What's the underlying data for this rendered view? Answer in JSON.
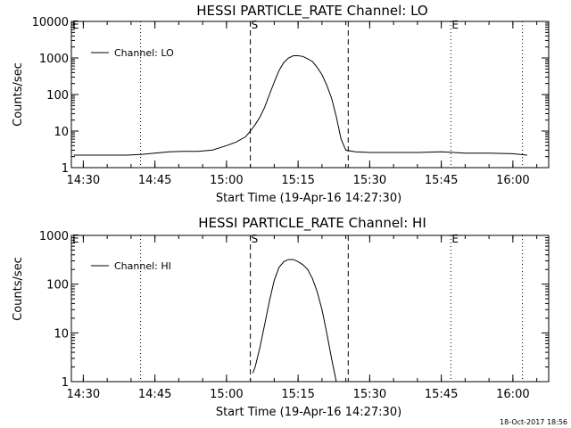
{
  "chart_data": [
    {
      "type": "line",
      "title": "HESSI PARTICLE_RATE Channel: LO",
      "xlabel": "Start Time (19-Apr-16 14:27:30)",
      "ylabel": "Counts/sec",
      "yscale": "log",
      "ylim": [
        1,
        10000
      ],
      "yticks": [
        1,
        10,
        100,
        1000,
        10000
      ],
      "ytick_labels": [
        "1",
        "10",
        "100",
        "1000",
        "10000"
      ],
      "xlim": [
        "14:27:30",
        "16:07:30"
      ],
      "xtick_labels": [
        "14:30",
        "14:45",
        "15:00",
        "15:15",
        "15:30",
        "15:45",
        "16:00"
      ],
      "legend": "top-left",
      "series": [
        {
          "name": "Channel: LO",
          "x": [
            "14:28:00",
            "14:30:00",
            "14:33:00",
            "14:36:00",
            "14:39:00",
            "14:42:00",
            "14:45:00",
            "14:48:00",
            "14:51:00",
            "14:54:00",
            "14:57:00",
            "15:00:00",
            "15:02:00",
            "15:04:00",
            "15:05:00",
            "15:06:00",
            "15:07:00",
            "15:08:00",
            "15:09:00",
            "15:10:00",
            "15:11:00",
            "15:12:00",
            "15:13:00",
            "15:14:00",
            "15:15:00",
            "15:16:00",
            "15:17:00",
            "15:18:00",
            "15:19:00",
            "15:20:00",
            "15:21:00",
            "15:22:00",
            "15:23:00",
            "15:24:00",
            "15:25:00",
            "15:27:00",
            "15:30:00",
            "15:35:00",
            "15:40:00",
            "15:45:00",
            "15:50:00",
            "15:55:00",
            "16:00:00",
            "16:03:00"
          ],
          "values": [
            2.2,
            2.2,
            2.2,
            2.2,
            2.2,
            2.3,
            2.5,
            2.7,
            2.8,
            2.8,
            3,
            4,
            5,
            7,
            10,
            15,
            24,
            45,
            100,
            220,
            450,
            750,
            1000,
            1150,
            1150,
            1100,
            950,
            800,
            550,
            350,
            180,
            80,
            25,
            6,
            3,
            2.7,
            2.6,
            2.6,
            2.6,
            2.7,
            2.5,
            2.5,
            2.4,
            2.2
          ]
        }
      ],
      "markers": [
        {
          "label": "E",
          "time": "14:27:30",
          "style": "dotted"
        },
        {
          "label": "",
          "time": "14:42:00",
          "style": "dotted"
        },
        {
          "label": "S",
          "time": "15:05:00",
          "style": "dashed"
        },
        {
          "label": "",
          "time": "15:25:30",
          "style": "dashed"
        },
        {
          "label": "E",
          "time": "15:47:00",
          "style": "dotted"
        },
        {
          "label": "",
          "time": "16:02:00",
          "style": "dotted"
        }
      ]
    },
    {
      "type": "line",
      "title": "HESSI PARTICLE_RATE Channel: HI",
      "xlabel": "Start Time (19-Apr-16 14:27:30)",
      "ylabel": "Counts/sec",
      "yscale": "log",
      "ylim": [
        1,
        1000
      ],
      "yticks": [
        1,
        10,
        100,
        1000
      ],
      "ytick_labels": [
        "1",
        "10",
        "100",
        "1000"
      ],
      "xlim": [
        "14:27:30",
        "16:07:30"
      ],
      "xtick_labels": [
        "14:30",
        "14:45",
        "15:00",
        "15:15",
        "15:30",
        "15:45",
        "16:00"
      ],
      "legend": "top-left",
      "series": [
        {
          "name": "Channel: HI",
          "x": [
            "15:05:30",
            "15:06:00",
            "15:07:00",
            "15:08:00",
            "15:09:00",
            "15:10:00",
            "15:11:00",
            "15:12:00",
            "15:13:00",
            "15:14:00",
            "15:15:00",
            "15:16:00",
            "15:17:00",
            "15:18:00",
            "15:19:00",
            "15:20:00",
            "15:21:00",
            "15:22:00",
            "15:23:00"
          ],
          "values": [
            1.5,
            2,
            5,
            15,
            45,
            120,
            220,
            290,
            320,
            320,
            290,
            250,
            200,
            130,
            70,
            30,
            10,
            3,
            1
          ]
        }
      ],
      "markers": [
        {
          "label": "E",
          "time": "14:27:30",
          "style": "dotted"
        },
        {
          "label": "",
          "time": "14:42:00",
          "style": "dotted"
        },
        {
          "label": "S",
          "time": "15:05:00",
          "style": "dashed"
        },
        {
          "label": "",
          "time": "15:25:30",
          "style": "dashed"
        },
        {
          "label": "E",
          "time": "15:47:00",
          "style": "dotted"
        },
        {
          "label": "",
          "time": "16:02:00",
          "style": "dotted"
        }
      ]
    }
  ],
  "footer": {
    "timestamp": "18-Oct-2017 18:56"
  }
}
